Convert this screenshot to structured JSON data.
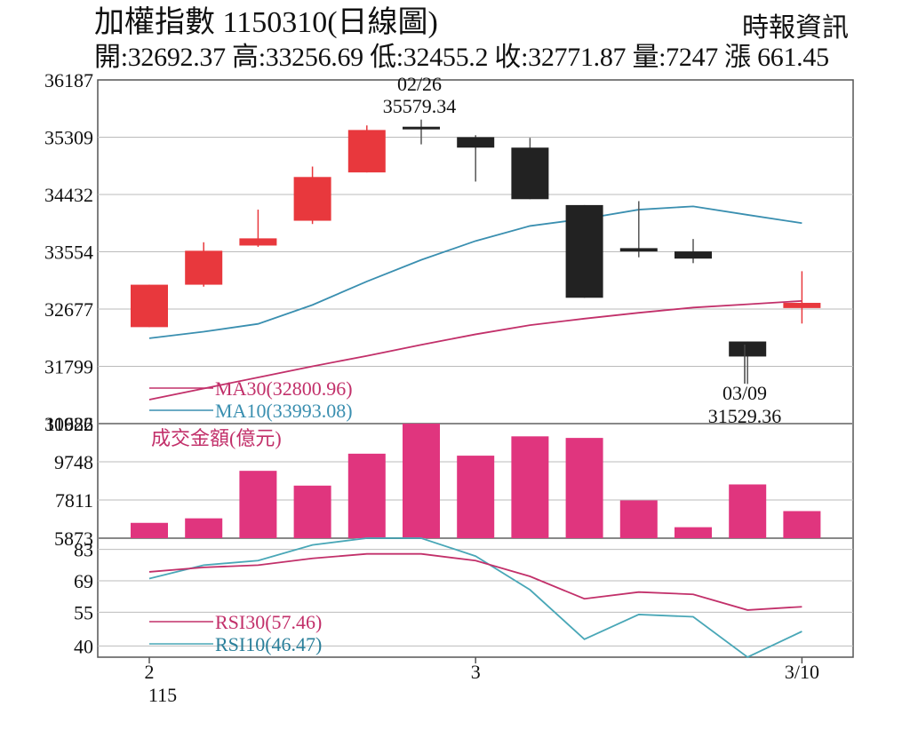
{
  "header": {
    "title": "加權指數 1150310(日線圖)",
    "source": "時報資訊",
    "ohlc_line": "開:32692.37 高:33256.69 低:32455.2 收:32771.87 量:7247 漲 661.45"
  },
  "colors": {
    "up": "#e8383d",
    "down": "#222222",
    "ma30": "#c2306a",
    "ma10": "#3a8fb0",
    "volume": "#e0357e",
    "rsi30": "#c2306a",
    "rsi10": "#49a7b7",
    "frame": "#555555"
  },
  "chart_data": [
    {
      "type": "candlestick",
      "ylim": [
        30922,
        36187
      ],
      "yticks": [
        "36187",
        "35309",
        "34432",
        "33554",
        "32677",
        "31799",
        "30922"
      ],
      "candles": [
        {
          "open": 32400,
          "high": 33050,
          "low": 32400,
          "close": 33050
        },
        {
          "open": 33050,
          "high": 33700,
          "low": 33020,
          "close": 33570
        },
        {
          "open": 33650,
          "high": 34200,
          "low": 33630,
          "close": 33760
        },
        {
          "open": 34030,
          "high": 34860,
          "low": 33980,
          "close": 34700
        },
        {
          "open": 34770,
          "high": 35490,
          "low": 34770,
          "close": 35420
        },
        {
          "open": 35470,
          "high": 35579.34,
          "low": 35200,
          "close": 35460
        },
        {
          "open": 35310,
          "high": 35340,
          "low": 34630,
          "close": 35150
        },
        {
          "open": 35150,
          "high": 35300,
          "low": 34360,
          "close": 34360
        },
        {
          "open": 34270,
          "high": 34270,
          "low": 32850,
          "close": 32850
        },
        {
          "open": 33610,
          "high": 34330,
          "low": 33470,
          "close": 33560
        },
        {
          "open": 33560,
          "high": 33750,
          "low": 33380,
          "close": 33450
        },
        {
          "open": 32180,
          "high": 32180,
          "low": 31529.36,
          "close": 31950
        },
        {
          "open": 32692.37,
          "high": 33256.69,
          "low": 32455.2,
          "close": 32771.87
        }
      ],
      "ma10": [
        32230,
        32330,
        32450,
        32740,
        33100,
        33430,
        33720,
        33950,
        34060,
        34200,
        34250,
        34120,
        33993.08
      ],
      "ma30": [
        31290,
        31460,
        31630,
        31800,
        31960,
        32130,
        32290,
        32430,
        32530,
        32620,
        32700,
        32750,
        32800.96
      ],
      "legend": [
        "MA30(32800.96)",
        "MA10(33993.08)"
      ],
      "annotations": [
        {
          "date": "02/26",
          "value": "35579.34"
        },
        {
          "date": "03/09",
          "value": "31529.36"
        }
      ]
    },
    {
      "type": "bar",
      "label": "成交金額(億元)",
      "ylim": [
        5873,
        11686
      ],
      "yticks": [
        "11686",
        "9748",
        "7811",
        "5873"
      ],
      "values": [
        6650,
        6880,
        9290,
        8540,
        10160,
        11730,
        10060,
        11040,
        10960,
        7790,
        6430,
        8600,
        7247
      ]
    },
    {
      "type": "line",
      "ylim": [
        35,
        88
      ],
      "yticks": [
        "83",
        "69",
        "55",
        "40"
      ],
      "rsi30": [
        73,
        75,
        76,
        79,
        81,
        81,
        78,
        71,
        61,
        64,
        63,
        56,
        57.46
      ],
      "rsi10": [
        70,
        76,
        78,
        85,
        89,
        89,
        80,
        65,
        43,
        54,
        53,
        35,
        46.47
      ],
      "legend": [
        "RSI30(57.46)",
        "RSI10(46.47)"
      ]
    }
  ],
  "xaxis": {
    "labels": [
      {
        "index": 0,
        "text": "2"
      },
      {
        "index": 6,
        "text": "3"
      },
      {
        "index": 12,
        "text": "3/10"
      }
    ],
    "year": "115"
  }
}
